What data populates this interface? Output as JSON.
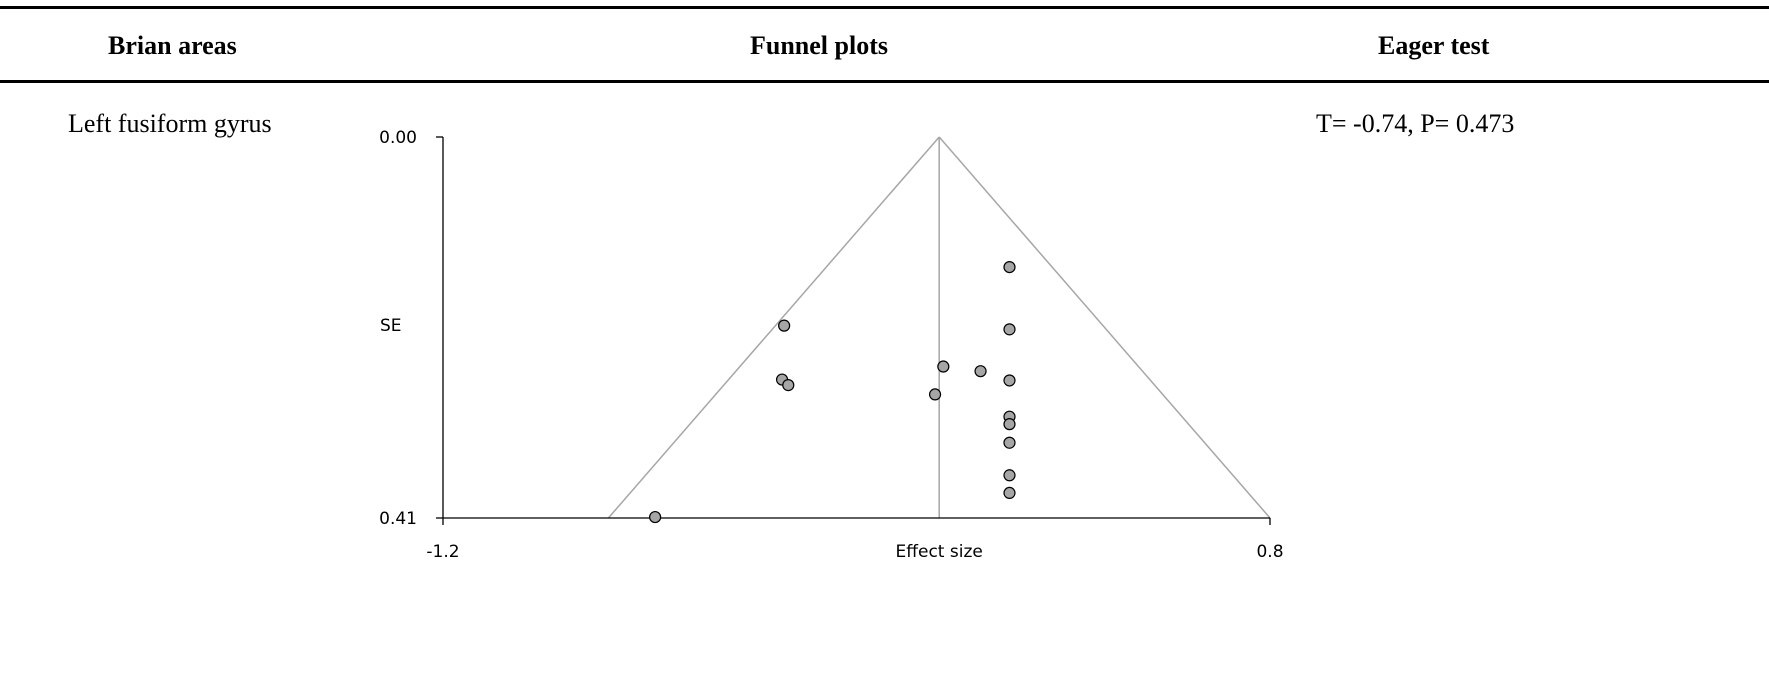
{
  "table": {
    "headers": {
      "region": "Brian areas",
      "plot": "Funnel plots",
      "test": "Eager test"
    },
    "row": {
      "region": "Left fusiform gyrus",
      "test": "T= -0.74, P= 0.473"
    }
  },
  "chart_data": {
    "type": "scatter",
    "subtype": "funnel",
    "xlabel": "Effect size",
    "ylabel": "SE",
    "xlim": [
      -1.2,
      0.8
    ],
    "ylim": [
      0.0,
      0.41
    ],
    "y_inverted": true,
    "x_ticks": [
      "-1.2",
      "0.8"
    ],
    "y_ticks": [
      "0.00",
      "0.41"
    ],
    "pooled_effect": 0.0,
    "funnel": {
      "apex": [
        0.0,
        0.0
      ],
      "base_left": -0.8,
      "base_right": 0.8
    },
    "points": [
      {
        "x": 0.17,
        "y": 0.14
      },
      {
        "x": -0.375,
        "y": 0.203
      },
      {
        "x": 0.17,
        "y": 0.207
      },
      {
        "x": 0.01,
        "y": 0.247
      },
      {
        "x": 0.1,
        "y": 0.252
      },
      {
        "x": -0.38,
        "y": 0.261
      },
      {
        "x": 0.17,
        "y": 0.262
      },
      {
        "x": -0.365,
        "y": 0.267
      },
      {
        "x": -0.01,
        "y": 0.277
      },
      {
        "x": 0.17,
        "y": 0.301
      },
      {
        "x": 0.17,
        "y": 0.309
      },
      {
        "x": 0.17,
        "y": 0.329
      },
      {
        "x": 0.17,
        "y": 0.364
      },
      {
        "x": 0.17,
        "y": 0.383
      },
      {
        "x": -0.687,
        "y": 0.409
      }
    ],
    "colors": {
      "point_fill": "#a6a6a6",
      "point_stroke": "#000000",
      "funnel_line": "#a6a6a6",
      "axis": "#000000"
    },
    "grid": false
  }
}
